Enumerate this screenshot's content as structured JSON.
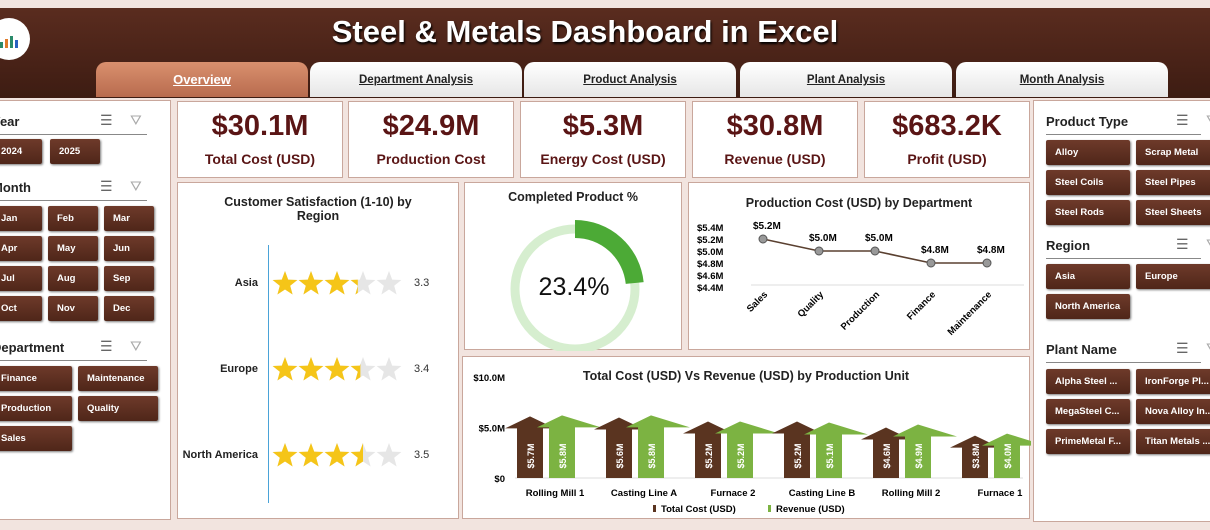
{
  "header": {
    "title": "Steel & Metals Dashboard in Excel"
  },
  "tabs": [
    "Overview",
    "Department Analysis",
    "Product Analysis",
    "Plant Analysis",
    "Month Analysis"
  ],
  "left_slicers": {
    "year": {
      "title": "Year",
      "items": [
        "2024",
        "2025"
      ]
    },
    "month": {
      "title": "Month",
      "items": [
        "Jan",
        "Feb",
        "Mar",
        "Apr",
        "May",
        "Jun",
        "Jul",
        "Aug",
        "Sep",
        "Oct",
        "Nov",
        "Dec"
      ]
    },
    "department": {
      "title": "Department",
      "items": [
        "Finance",
        "Maintenance",
        "Production",
        "Quality",
        "Sales"
      ]
    }
  },
  "right_slicers": {
    "product_type": {
      "title": "Product Type",
      "items": [
        "Alloy",
        "Scrap Metal",
        "Steel Coils",
        "Steel Pipes",
        "Steel Rods",
        "Steel Sheets"
      ]
    },
    "region": {
      "title": "Region",
      "items": [
        "Asia",
        "Europe",
        "North America"
      ]
    },
    "plant_name": {
      "title": "Plant Name",
      "items": [
        "Alpha Steel ...",
        "IronForge Pl...",
        "MegaSteel C...",
        "Nova Alloy In...",
        "PrimeMetal F...",
        "Titan Metals ..."
      ]
    }
  },
  "kpis": [
    {
      "value": "$30.1M",
      "label": "Total Cost (USD)"
    },
    {
      "value": "$24.9M",
      "label": "Production Cost"
    },
    {
      "value": "$5.3M",
      "label": "Energy Cost (USD)"
    },
    {
      "value": "$30.8M",
      "label": "Revenue (USD)"
    },
    {
      "value": "$683.2K",
      "label": "Profit (USD)"
    }
  ],
  "chart_data": [
    {
      "type": "bar",
      "title": "Customer Satisfaction (1-10) by Region",
      "categories": [
        "Asia",
        "Europe",
        "North America"
      ],
      "values": [
        3.3,
        3.4,
        3.5
      ],
      "labels": [
        "3.3",
        "3.4",
        "3.5"
      ],
      "max_stars": 5
    },
    {
      "type": "pie",
      "title": "Completed Product %",
      "value": 23.4,
      "label": "23.4%"
    },
    {
      "type": "line",
      "title": "Production Cost (USD) by Department",
      "categories": [
        "Sales",
        "Quality",
        "Production",
        "Finance",
        "Maintenance"
      ],
      "values": [
        5.2,
        5.0,
        5.0,
        4.8,
        4.8
      ],
      "labels": [
        "$5.2M",
        "$5.0M",
        "$5.0M",
        "$4.8M",
        "$4.8M"
      ],
      "yticks": [
        "$5.4M",
        "$5.2M",
        "$5.0M",
        "$4.8M",
        "$4.6M",
        "$4.4M"
      ],
      "ylim": [
        4.4,
        5.4
      ]
    },
    {
      "type": "bar",
      "title": "Total Cost (USD) Vs Revenue (USD) by Production Unit",
      "categories": [
        "Rolling Mill 1",
        "Casting Line A",
        "Furnace 2",
        "Casting Line B",
        "Rolling Mill 2",
        "Furnace 1"
      ],
      "series": [
        {
          "name": "Total Cost (USD)",
          "values": [
            5.7,
            5.6,
            5.2,
            5.2,
            4.6,
            3.8
          ],
          "labels": [
            "$5.7M",
            "$5.6M",
            "$5.2M",
            "$5.2M",
            "$4.6M",
            "$3.8M"
          ],
          "color": "#5a3420"
        },
        {
          "name": "Revenue (USD)",
          "values": [
            5.8,
            5.8,
            5.2,
            5.1,
            4.9,
            4.0
          ],
          "labels": [
            "$5.8M",
            "$5.8M",
            "$5.2M",
            "$5.1M",
            "$4.9M",
            "$4.0M"
          ],
          "color": "#7cb342"
        }
      ],
      "yticks": [
        "$10.0M",
        "$5.0M",
        "$0"
      ],
      "ylim": [
        0,
        10
      ]
    }
  ]
}
